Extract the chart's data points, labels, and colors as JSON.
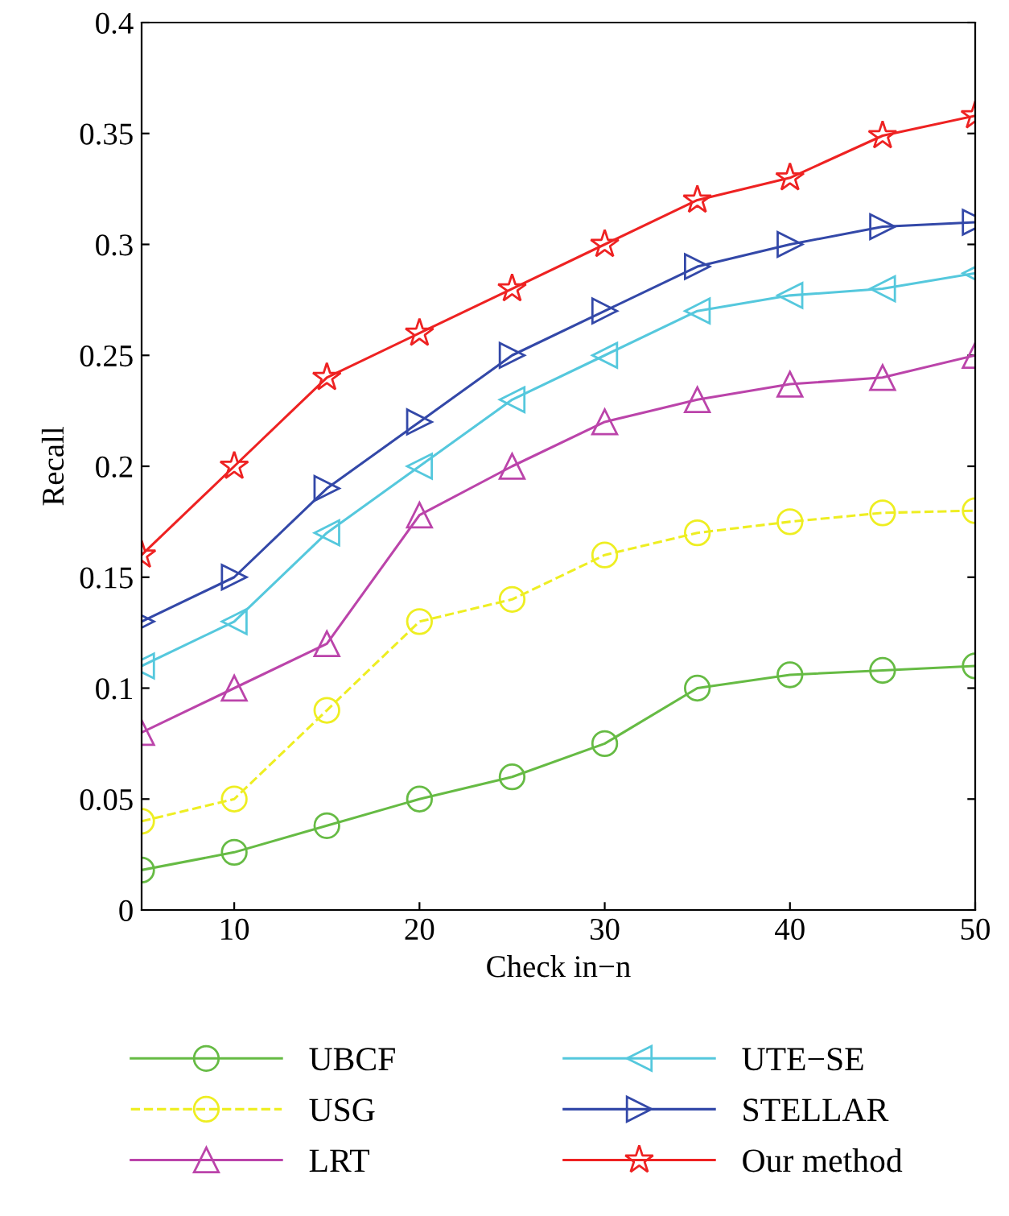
{
  "chart_data": {
    "type": "line",
    "xlabel": "Check in−n",
    "ylabel": "Recall",
    "x": [
      5,
      10,
      15,
      20,
      25,
      30,
      35,
      40,
      45,
      50
    ],
    "xlim": [
      5,
      50
    ],
    "xticks": [
      10,
      20,
      30,
      40,
      50
    ],
    "ylim": [
      0,
      0.4
    ],
    "yticks": [
      0,
      0.05,
      0.1,
      0.15,
      0.2,
      0.25,
      0.3,
      0.35,
      0.4
    ],
    "grid": false,
    "legend": "bottom",
    "series": [
      {
        "name": "UBCF",
        "color": "#66bb44",
        "marker": "circle",
        "line_style": "solid",
        "values": [
          0.018,
          0.026,
          0.038,
          0.05,
          0.06,
          0.075,
          0.1,
          0.106,
          0.108,
          0.11
        ]
      },
      {
        "name": "USG",
        "color": "#eeee22",
        "marker": "circle",
        "line_style": "dashed",
        "values": [
          0.04,
          0.05,
          0.09,
          0.13,
          0.14,
          0.16,
          0.17,
          0.175,
          0.179,
          0.18
        ]
      },
      {
        "name": "LRT",
        "color": "#bb44aa",
        "marker": "triangle",
        "line_style": "solid",
        "values": [
          0.08,
          0.1,
          0.12,
          0.178,
          0.2,
          0.22,
          0.23,
          0.237,
          0.24,
          0.25
        ]
      },
      {
        "name": "UTE−SE",
        "color": "#55c8dd",
        "marker": "triangle-left",
        "line_style": "solid",
        "values": [
          0.11,
          0.13,
          0.17,
          0.2,
          0.23,
          0.25,
          0.27,
          0.277,
          0.28,
          0.287
        ]
      },
      {
        "name": "STELLAR",
        "color": "#3348a8",
        "marker": "triangle-right",
        "line_style": "solid",
        "values": [
          0.13,
          0.15,
          0.19,
          0.22,
          0.25,
          0.27,
          0.29,
          0.3,
          0.308,
          0.31
        ]
      },
      {
        "name": "Our method",
        "color": "#ee2222",
        "marker": "star",
        "line_style": "solid",
        "values": [
          0.16,
          0.2,
          0.24,
          0.26,
          0.28,
          0.3,
          0.32,
          0.33,
          0.349,
          0.358
        ]
      }
    ]
  }
}
